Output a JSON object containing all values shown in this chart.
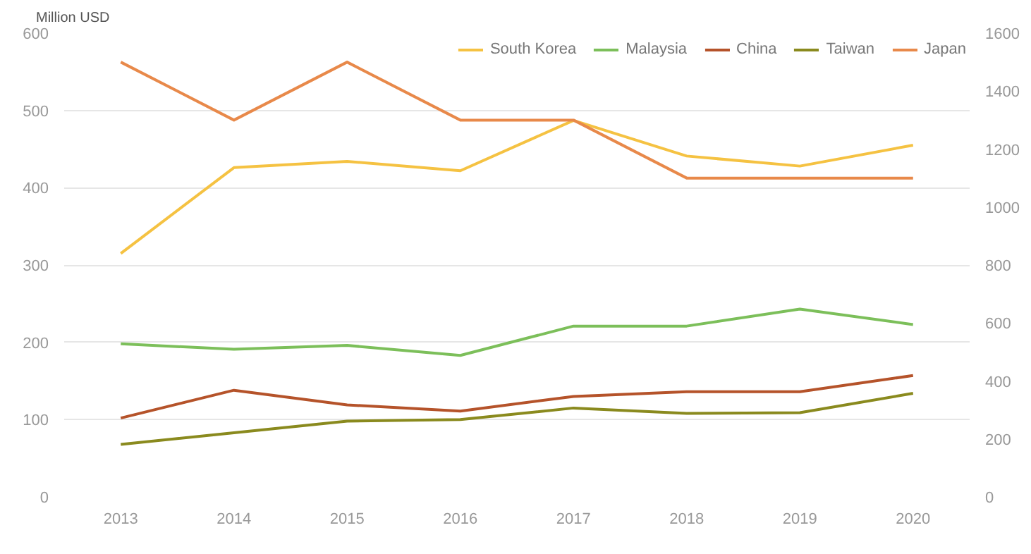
{
  "chart_data": {
    "type": "line",
    "ylabel": "Million USD",
    "x": [
      2013,
      2014,
      2015,
      2016,
      2017,
      2018,
      2019,
      2020
    ],
    "xlim": [
      2012.5,
      2020.5
    ],
    "xticks": [
      2013,
      2014,
      2015,
      2016,
      2017,
      2018,
      2019,
      2020
    ],
    "ylim": [
      0,
      600
    ],
    "yticks": [
      0,
      100,
      200,
      300,
      400,
      500,
      600
    ],
    "y2lim": [
      0,
      1600
    ],
    "y2ticks": [
      0,
      200,
      400,
      600,
      800,
      1000,
      1200,
      1400,
      1600
    ],
    "grid": "y",
    "legend": "top right",
    "marker": "none",
    "line_style": "solid",
    "series": [
      {
        "name": "South Korea",
        "color": "#f5c242",
        "values": [
          315,
          426,
          434,
          422,
          487,
          441,
          428,
          455
        ]
      },
      {
        "name": "Malaysia",
        "color": "#7cbf5a",
        "values": [
          198,
          191,
          196,
          183,
          221,
          221,
          243,
          223
        ]
      },
      {
        "name": "China",
        "color": "#b5532a",
        "values": [
          102,
          138,
          119,
          111,
          130,
          136,
          136,
          157
        ]
      },
      {
        "name": "Taiwan",
        "color": "#8a8a1e",
        "values": [
          68,
          83,
          98,
          100,
          115,
          108,
          109,
          134
        ]
      },
      {
        "name": "Japan",
        "color": "#e8894a",
        "axis": "y2",
        "values": [
          1500,
          1300,
          1500,
          1300,
          1300,
          1100,
          1100,
          1100
        ]
      }
    ]
  }
}
